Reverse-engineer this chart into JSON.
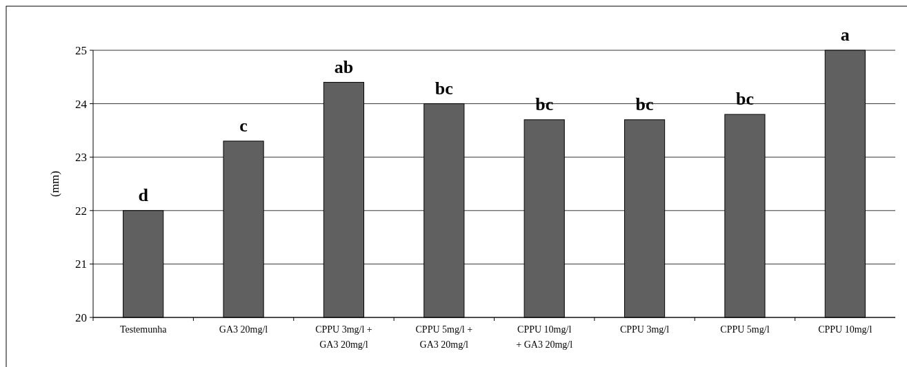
{
  "chart_data": {
    "type": "bar",
    "ylabel": "(mm)",
    "categories": [
      "Testemunha",
      "GA3 20mg/l",
      "CPPU 3mg/l +\nGA3 20mg/l",
      "CPPU 5mg/l +\nGA3 20mg/l",
      "CPPU 10mg/l\n+ GA3 20mg/l",
      "CPPU 3mg/l",
      "CPPU 5mg/l",
      "CPPU 10mg/l"
    ],
    "values": [
      22.0,
      23.3,
      24.4,
      24.0,
      23.7,
      23.7,
      23.8,
      25.0
    ],
    "color": "#606060",
    "ylim": [
      20,
      25
    ],
    "yticks": [
      20,
      21,
      22,
      23,
      24,
      25
    ],
    "grid": "y",
    "annotations": [
      {
        "text": "d",
        "x": "Testemunha",
        "y": 22.0
      },
      {
        "text": "c",
        "x": "GA3 20mg/l",
        "y": 23.3
      },
      {
        "text": "ab",
        "x": "CPPU 3mg/l +\nGA3 20mg/l",
        "y": 24.4
      },
      {
        "text": "bc",
        "x": "CPPU 5mg/l +\nGA3 20mg/l",
        "y": 24.0
      },
      {
        "text": "bc",
        "x": "CPPU 10mg/l\n+ GA3 20mg/l",
        "y": 23.7
      },
      {
        "text": "bc",
        "x": "CPPU 3mg/l",
        "y": 23.7
      },
      {
        "text": "bc",
        "x": "CPPU 5mg/l",
        "y": 23.8
      },
      {
        "text": "a",
        "x": "CPPU 10mg/l",
        "y": 25.0
      }
    ]
  }
}
